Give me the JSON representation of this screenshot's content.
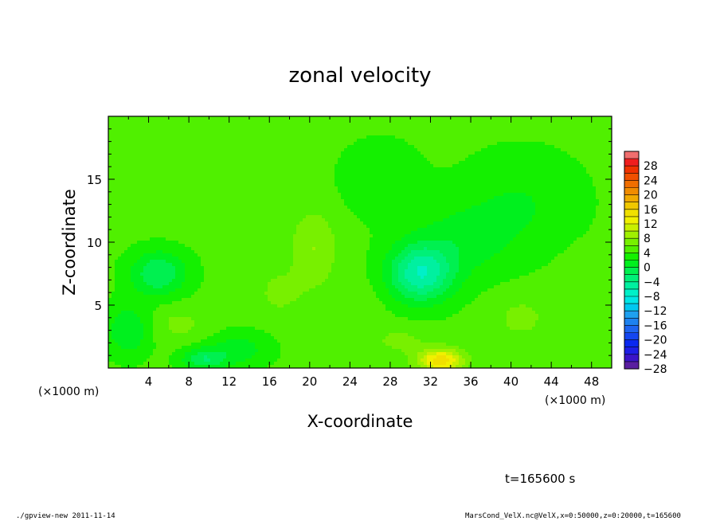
{
  "chart_data": {
    "type": "heatmap",
    "title": "zonal velocity",
    "xlabel": "X-coordinate",
    "ylabel": "Z-coordinate",
    "x_unit": "(×1000 m)",
    "y_unit": "(×1000 m)",
    "xlim": [
      0,
      50
    ],
    "ylim": [
      0,
      20
    ],
    "x_ticks": [
      4,
      8,
      12,
      16,
      20,
      24,
      28,
      32,
      36,
      40,
      44,
      48
    ],
    "y_ticks": [
      5,
      10,
      15
    ],
    "colorbar": {
      "levels": [
        -30,
        -28,
        -26,
        -24,
        -22,
        -20,
        -18,
        -16,
        -14,
        -12,
        -10,
        -8,
        -6,
        -4,
        -2,
        0,
        2,
        4,
        6,
        8,
        10,
        12,
        14,
        16,
        18,
        20,
        22,
        24,
        26,
        28,
        30
      ],
      "labels": [
        "28",
        "24",
        "20",
        "16",
        "12",
        "8",
        "4",
        "0",
        "−4",
        "−8",
        "−12",
        "−16",
        "−20",
        "−24",
        "−28"
      ],
      "colors": [
        "#5a1ea0",
        "#3c14c8",
        "#1e1ee6",
        "#0a28f0",
        "#1446f0",
        "#1e64f0",
        "#1e82f0",
        "#1ea0f0",
        "#00c8f0",
        "#00e6e6",
        "#00f0c8",
        "#00f0a0",
        "#00f078",
        "#00f050",
        "#00f01e",
        "#14f000",
        "#50f000",
        "#78f000",
        "#a0f000",
        "#c8f000",
        "#f0f000",
        "#f0e000",
        "#f0c800",
        "#f0aa00",
        "#f08c00",
        "#f06e00",
        "#f05000",
        "#f03200",
        "#f01e1e",
        "#f06e6e"
      ]
    },
    "base_value": 2.5,
    "features": [
      {
        "x": 33,
        "z": 0.6,
        "value": 12,
        "sx": 2.2,
        "sz": 0.9
      },
      {
        "x": 31,
        "z": 7.5,
        "value": -9,
        "sx": 3.2,
        "sz": 2.3
      },
      {
        "x": 5,
        "z": 7.5,
        "value": -5.5,
        "sx": 2.8,
        "sz": 1.8
      },
      {
        "x": 9.5,
        "z": 0.7,
        "value": -5,
        "sx": 2.2,
        "sz": 0.9
      },
      {
        "x": 2,
        "z": 3,
        "value": -3.5,
        "sx": 2.2,
        "sz": 2
      },
      {
        "x": 13,
        "z": 1.5,
        "value": -2.5,
        "sx": 3,
        "sz": 1.4
      },
      {
        "x": 20.5,
        "z": 9.5,
        "value": 4.5,
        "sx": 2.2,
        "sz": 3
      },
      {
        "x": 17,
        "z": 6,
        "value": 3,
        "sx": 2.5,
        "sz": 2
      },
      {
        "x": 15,
        "z": 12,
        "value": 1.8,
        "sx": 3,
        "sz": 2
      },
      {
        "x": 29,
        "z": 2.2,
        "value": 3,
        "sx": 3,
        "sz": 1.2
      },
      {
        "x": 41,
        "z": 4,
        "value": 3,
        "sx": 3,
        "sz": 2
      },
      {
        "x": 7,
        "z": 3.5,
        "value": 3,
        "sx": 3,
        "sz": 1.5
      },
      {
        "x": 25,
        "z": 5,
        "value": 1.8,
        "sx": 2.5,
        "sz": 2
      },
      {
        "x": 47,
        "z": 7,
        "value": 1.5,
        "sx": 3,
        "sz": 3
      },
      {
        "x": 8,
        "z": 15,
        "value": 2,
        "sx": 6,
        "sz": 3
      },
      {
        "x": 41,
        "z": 13,
        "value": -1.5,
        "sx": 6,
        "sz": 4
      },
      {
        "x": 27,
        "z": 15,
        "value": -1,
        "sx": 4,
        "sz": 3
      },
      {
        "x": 35,
        "z": 10,
        "value": -2,
        "sx": 5,
        "sz": 3
      }
    ]
  },
  "time_label": "t=165600 s",
  "footer_left": "./gpview-new  2011-11-14",
  "footer_right": "MarsCond_VelX.nc@VelX,x=0:50000,z=0:20000,t=165600"
}
